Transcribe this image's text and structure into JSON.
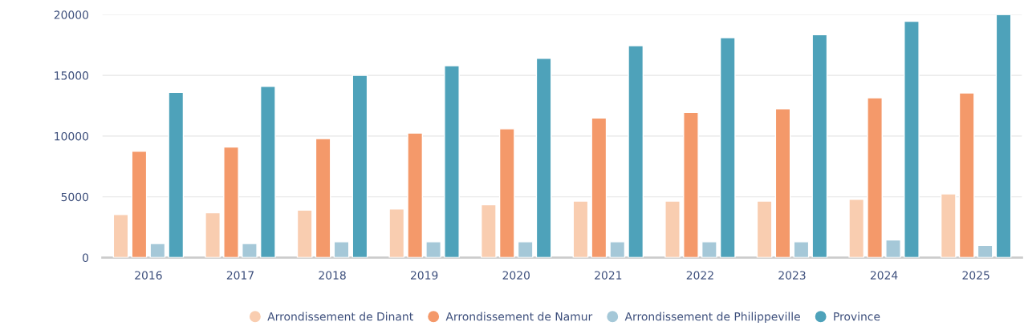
{
  "chart_data": {
    "type": "bar",
    "categories": [
      "2016",
      "2017",
      "2018",
      "2019",
      "2020",
      "2021",
      "2022",
      "2023",
      "2024",
      "2025"
    ],
    "series": [
      {
        "name": "Arrondissement de Dinant",
        "color": "#f9cdb0",
        "values": [
          3550,
          3700,
          3900,
          4000,
          4350,
          4650,
          4650,
          4650,
          4800,
          5250
        ]
      },
      {
        "name": "Arrondissement de Namur",
        "color": "#f4996a",
        "values": [
          8750,
          9100,
          9800,
          10250,
          10600,
          11500,
          11950,
          12250,
          13150,
          13550
        ]
      },
      {
        "name": "Arrondissement de Philippeville",
        "color": "#a5c8d8",
        "values": [
          1150,
          1150,
          1300,
          1300,
          1300,
          1300,
          1300,
          1300,
          1450,
          1000
        ]
      },
      {
        "name": "Province",
        "color": "#4ea2ba",
        "values": [
          13600,
          14100,
          15000,
          15800,
          16400,
          17450,
          18100,
          18350,
          19450,
          20000
        ]
      }
    ],
    "ylim": [
      0,
      20000
    ],
    "yticks": [
      0,
      5000,
      10000,
      15000,
      20000
    ],
    "grid": "y",
    "legend": "bottom"
  }
}
